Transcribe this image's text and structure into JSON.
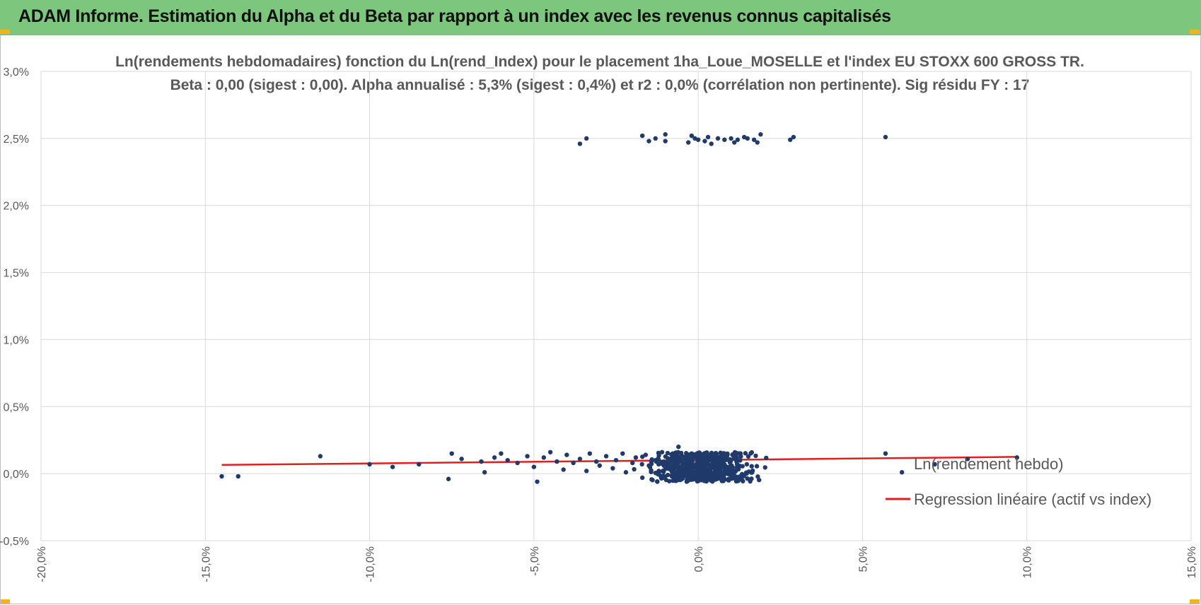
{
  "header": {
    "title": "ADAM Informe. Estimation du Alpha et du Beta par rapport à un index avec les revenus connus capitalisés"
  },
  "colors": {
    "banner": "#7dc67d",
    "points": "#1f3a6b",
    "regression": "#e02020",
    "grid": "#d9d9d9",
    "corner": "#f3b41b"
  },
  "chart_data": {
    "type": "scatter",
    "title_line1": "Ln(rendements hebdomadaires) fonction du Ln(rend_Index) pour le placement 1ha_Loue_MOSELLE et l'index EU STOXX 600 GROSS TR.",
    "title_line2": "Beta : 0,00 (sigest : 0,00). Alpha annualisé : 5,3% (sigest : 0,4%) et r2 : 0,0% (corrélation non pertinente). Sig résidu FY : 17",
    "xlim": [
      -0.2,
      0.15
    ],
    "ylim": [
      -0.005,
      0.03
    ],
    "x_ticks": [
      -0.2,
      -0.15,
      -0.1,
      -0.05,
      0.0,
      0.05,
      0.1,
      0.15
    ],
    "x_tick_labels": [
      "-20,0%",
      "-15,0%",
      "-10,0%",
      "-5,0%",
      "0,0%",
      "5,0%",
      "10,0%",
      "15,0%"
    ],
    "y_ticks": [
      -0.005,
      0.0,
      0.005,
      0.01,
      0.015,
      0.02,
      0.025,
      0.03
    ],
    "y_tick_labels": [
      "-0,5%",
      "0,0%",
      "0,5%",
      "1,0%",
      "1,5%",
      "2,0%",
      "2,5%",
      "3,0%"
    ],
    "grid": "vertical and horizontal",
    "legend_position": "right",
    "series": [
      {
        "name": "Ln(rendement hebdo)",
        "kind": "points",
        "points": [
          [
            -0.145,
            -0.0002
          ],
          [
            -0.14,
            -0.0002
          ],
          [
            -0.115,
            0.0013
          ],
          [
            -0.1,
            0.0007
          ],
          [
            -0.093,
            0.0005
          ],
          [
            -0.085,
            0.0007
          ],
          [
            -0.076,
            -0.0004
          ],
          [
            -0.075,
            0.0015
          ],
          [
            -0.072,
            0.0011
          ],
          [
            -0.066,
            0.0009
          ],
          [
            -0.065,
            0.0001
          ],
          [
            -0.062,
            0.0012
          ],
          [
            -0.06,
            0.0015
          ],
          [
            -0.058,
            0.001
          ],
          [
            -0.055,
            0.0008
          ],
          [
            -0.052,
            0.0013
          ],
          [
            -0.05,
            0.0005
          ],
          [
            -0.049,
            -0.0006
          ],
          [
            -0.047,
            0.0012
          ],
          [
            -0.045,
            0.0016
          ],
          [
            -0.043,
            0.0009
          ],
          [
            -0.041,
            0.0003
          ],
          [
            -0.04,
            0.0014
          ],
          [
            -0.038,
            0.0008
          ],
          [
            -0.036,
            0.0011
          ],
          [
            -0.034,
            0.0002
          ],
          [
            -0.033,
            0.0015
          ],
          [
            -0.031,
            0.0009
          ],
          [
            -0.03,
            0.0006
          ],
          [
            -0.028,
            0.0013
          ],
          [
            -0.026,
            0.0004
          ],
          [
            -0.025,
            0.001
          ],
          [
            -0.023,
            0.0015
          ],
          [
            -0.022,
            0.0001
          ],
          [
            -0.02,
            0.0008
          ],
          [
            -0.019,
            0.0012
          ],
          [
            -0.017,
            -0.0003
          ],
          [
            -0.016,
            0.0014
          ],
          [
            -0.015,
            0.0006
          ],
          [
            -0.013,
            0.001
          ],
          [
            -0.012,
            0.0002
          ],
          [
            -0.011,
            0.0016
          ],
          [
            -0.009,
            0.0007
          ],
          [
            -0.008,
            -0.0002
          ],
          [
            -0.007,
            0.0013
          ],
          [
            -0.006,
            0.002
          ],
          [
            -0.005,
            0.0004
          ],
          [
            -0.004,
            0.0011
          ],
          [
            -0.003,
            -0.0001
          ],
          [
            -0.002,
            0.0015
          ],
          [
            0.062,
            0.0001
          ],
          [
            0.072,
            0.0007
          ],
          [
            0.082,
            0.0011
          ],
          [
            0.097,
            0.0012
          ],
          [
            0.057,
            0.0015
          ],
          [
            -0.036,
            0.0246
          ],
          [
            -0.034,
            0.025
          ],
          [
            -0.017,
            0.0252
          ],
          [
            -0.015,
            0.0248
          ],
          [
            -0.013,
            0.025
          ],
          [
            -0.01,
            0.0253
          ],
          [
            -0.01,
            0.0248
          ],
          [
            -0.003,
            0.0247
          ],
          [
            -0.002,
            0.0252
          ],
          [
            -0.001,
            0.025
          ],
          [
            0.0,
            0.0249
          ],
          [
            0.002,
            0.0248
          ],
          [
            0.003,
            0.0251
          ],
          [
            0.004,
            0.0246
          ],
          [
            0.006,
            0.025
          ],
          [
            0.008,
            0.0249
          ],
          [
            0.01,
            0.025
          ],
          [
            0.011,
            0.0247
          ],
          [
            0.012,
            0.0249
          ],
          [
            0.014,
            0.0251
          ],
          [
            0.015,
            0.025
          ],
          [
            0.017,
            0.0249
          ],
          [
            0.018,
            0.0247
          ],
          [
            0.019,
            0.0253
          ],
          [
            0.028,
            0.0249
          ],
          [
            0.029,
            0.0251
          ],
          [
            0.057,
            0.0251
          ]
        ]
      },
      {
        "name": "Regression linéaire (actif vs index)",
        "kind": "line",
        "points": [
          [
            -0.145,
            0.00065
          ],
          [
            0.097,
            0.00125
          ]
        ]
      }
    ]
  }
}
